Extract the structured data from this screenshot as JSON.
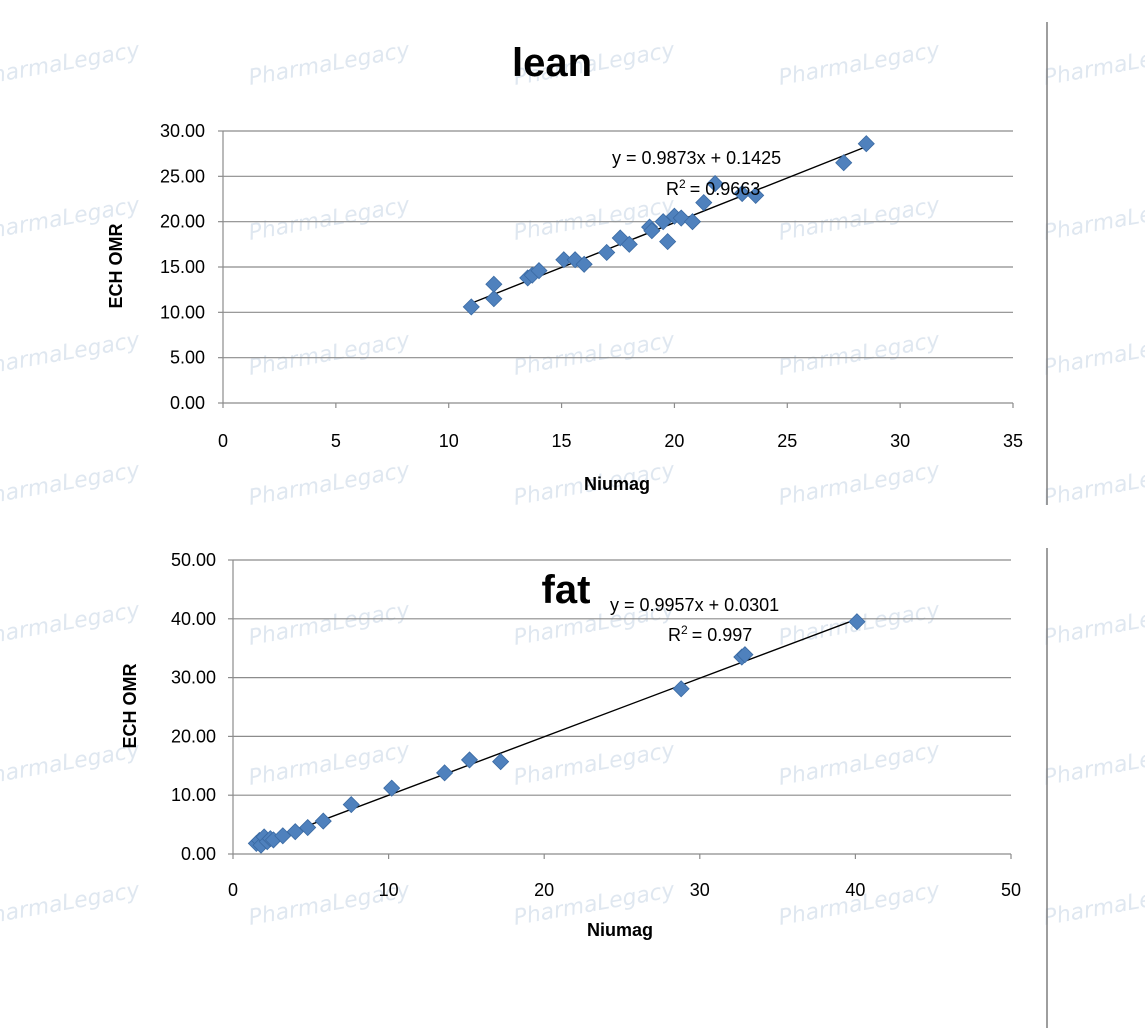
{
  "chart_data": [
    {
      "type": "scatter",
      "title": "lean",
      "xlabel": "Niumag",
      "ylabel": "ECH OMR",
      "xlim": [
        0,
        35
      ],
      "ylim": [
        0,
        30
      ],
      "x_ticks": [
        "0",
        "5",
        "10",
        "15",
        "20",
        "25",
        "30",
        "35"
      ],
      "y_ticks": [
        "0.00",
        "5.00",
        "10.00",
        "15.00",
        "20.00",
        "25.00",
        "30.00"
      ],
      "grid": "horizontal",
      "trendline": {
        "slope": 0.9873,
        "intercept": 0.1425,
        "equation": "y = 0.9873x + 0.1425",
        "r2_label": "R",
        "r2_value": "= 0.9663"
      },
      "points": [
        [
          11.0,
          10.6
        ],
        [
          12.0,
          11.5
        ],
        [
          12.0,
          13.1
        ],
        [
          13.5,
          13.8
        ],
        [
          13.7,
          14.1
        ],
        [
          14.0,
          14.6
        ],
        [
          15.1,
          15.8
        ],
        [
          15.6,
          15.8
        ],
        [
          16.0,
          15.3
        ],
        [
          17.0,
          16.6
        ],
        [
          17.6,
          18.2
        ],
        [
          18.0,
          17.5
        ],
        [
          18.9,
          19.4
        ],
        [
          19.0,
          19.0
        ],
        [
          19.5,
          20.0
        ],
        [
          19.7,
          17.8
        ],
        [
          20.0,
          20.6
        ],
        [
          20.3,
          20.4
        ],
        [
          20.8,
          20.0
        ],
        [
          21.3,
          22.1
        ],
        [
          21.8,
          24.2
        ],
        [
          23.0,
          23.1
        ],
        [
          23.6,
          22.9
        ],
        [
          27.5,
          26.5
        ],
        [
          28.5,
          28.6
        ]
      ]
    },
    {
      "type": "scatter",
      "title": "fat",
      "xlabel": "Niumag",
      "ylabel": "ECH OMR",
      "xlim": [
        0,
        50
      ],
      "ylim": [
        0,
        50
      ],
      "x_ticks": [
        "0",
        "10",
        "20",
        "30",
        "40",
        "50"
      ],
      "y_ticks": [
        "0.00",
        "10.00",
        "20.00",
        "30.00",
        "40.00",
        "50.00"
      ],
      "grid": "horizontal",
      "trendline": {
        "slope": 0.9957,
        "intercept": 0.0301,
        "equation": "y = 0.9957x + 0.0301",
        "r2_label": "R",
        "r2_value": "= 0.997"
      },
      "points": [
        [
          1.5,
          1.8
        ],
        [
          1.7,
          2.3
        ],
        [
          1.8,
          1.5
        ],
        [
          2.0,
          2.9
        ],
        [
          2.2,
          2.1
        ],
        [
          2.4,
          2.6
        ],
        [
          2.6,
          2.4
        ],
        [
          3.2,
          3.1
        ],
        [
          4.0,
          3.8
        ],
        [
          4.8,
          4.5
        ],
        [
          5.8,
          5.6
        ],
        [
          7.6,
          8.4
        ],
        [
          10.2,
          11.2
        ],
        [
          13.6,
          13.8
        ],
        [
          15.2,
          16.0
        ],
        [
          17.2,
          15.7
        ],
        [
          28.8,
          28.1
        ],
        [
          32.7,
          33.5
        ],
        [
          32.9,
          33.9
        ],
        [
          40.1,
          39.5
        ]
      ]
    }
  ],
  "watermark": {
    "text": "PharmaLegacy",
    "color": "#c5d4e4"
  },
  "colors": {
    "marker": "#4f81bd",
    "marker_edge": "#3a6aa3",
    "trendline": "#000000",
    "grid": "#8c8c8c"
  }
}
